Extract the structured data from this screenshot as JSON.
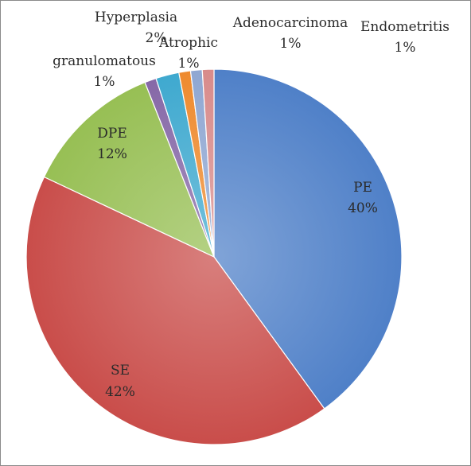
{
  "chart_data": {
    "type": "pie",
    "title": "",
    "slices": [
      {
        "name": "PE",
        "label": "40%",
        "value": 40,
        "color": "#4f80c8"
      },
      {
        "name": "SE",
        "label": "42%",
        "value": 42,
        "color": "#c94d4a"
      },
      {
        "name": "DPE",
        "label": "12%",
        "value": 12,
        "color": "#97bf54"
      },
      {
        "name": "granulomatous",
        "label": "1%",
        "value": 1,
        "color": "#8668a7"
      },
      {
        "name": "Hyperplasia",
        "label": "2%",
        "value": 2,
        "color": "#3fa9cf"
      },
      {
        "name": "Atrophic",
        "label": "1%",
        "value": 1,
        "color": "#ee8a2e"
      },
      {
        "name": "Adenocarcinoma",
        "label": "1%",
        "value": 1,
        "color": "#8fa7d2"
      },
      {
        "name": "Endometritis",
        "label": "1%",
        "value": 1,
        "color": "#d88b8b"
      }
    ],
    "legend": "none"
  }
}
